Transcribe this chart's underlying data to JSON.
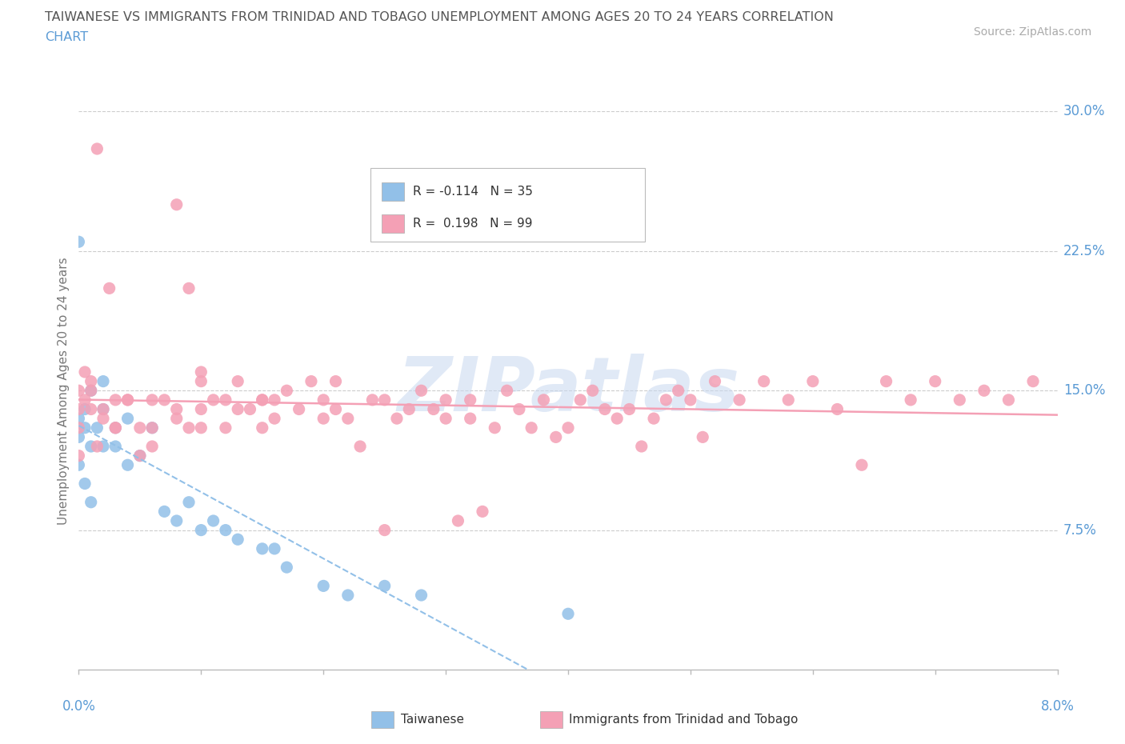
{
  "title_line1": "TAIWANESE VS IMMIGRANTS FROM TRINIDAD AND TOBAGO UNEMPLOYMENT AMONG AGES 20 TO 24 YEARS CORRELATION",
  "title_line2": "CHART",
  "source": "Source: ZipAtlas.com",
  "legend1_r": "-0.114",
  "legend1_n": "35",
  "legend2_r": "0.198",
  "legend2_n": "99",
  "color_taiwanese": "#92c0e8",
  "color_tt": "#f4a0b5",
  "color_title": "#555555",
  "color_source": "#aaaaaa",
  "color_axis_labels": "#5b9bd5",
  "xmin": 0.0,
  "xmax": 8.0,
  "ymin": 0.0,
  "ymax": 30.0,
  "ylabel_ticks": [
    "7.5%",
    "15.0%",
    "22.5%",
    "30.0%"
  ],
  "ylabel_vals": [
    7.5,
    15.0,
    22.5,
    30.0
  ],
  "watermark": "ZIPatlas",
  "tw_x": [
    0.0,
    0.0,
    0.0,
    0.0,
    0.05,
    0.05,
    0.1,
    0.1,
    0.1,
    0.15,
    0.2,
    0.2,
    0.2,
    0.3,
    0.3,
    0.4,
    0.4,
    0.5,
    0.6,
    0.7,
    0.8,
    0.9,
    1.0,
    1.1,
    1.2,
    1.3,
    1.5,
    1.6,
    1.7,
    2.0,
    2.2,
    2.5,
    2.8,
    4.0,
    0.05
  ],
  "tw_y": [
    23.0,
    13.5,
    12.5,
    11.0,
    14.0,
    13.0,
    12.0,
    9.0,
    15.0,
    13.0,
    12.0,
    15.5,
    14.0,
    12.0,
    13.0,
    11.0,
    13.5,
    11.5,
    13.0,
    8.5,
    8.0,
    9.0,
    7.5,
    8.0,
    7.5,
    7.0,
    6.5,
    6.5,
    5.5,
    4.5,
    4.0,
    4.5,
    4.0,
    3.0,
    10.0
  ],
  "tt_x": [
    0.0,
    0.0,
    0.0,
    0.0,
    0.05,
    0.05,
    0.1,
    0.1,
    0.15,
    0.2,
    0.25,
    0.3,
    0.3,
    0.4,
    0.5,
    0.5,
    0.6,
    0.6,
    0.7,
    0.8,
    0.8,
    0.9,
    0.9,
    1.0,
    1.0,
    1.0,
    1.1,
    1.2,
    1.2,
    1.3,
    1.3,
    1.4,
    1.5,
    1.5,
    1.6,
    1.6,
    1.7,
    1.8,
    1.9,
    2.0,
    2.0,
    2.1,
    2.1,
    2.2,
    2.3,
    2.4,
    2.5,
    2.5,
    2.6,
    2.7,
    2.8,
    2.9,
    3.0,
    3.0,
    3.1,
    3.2,
    3.2,
    3.3,
    3.4,
    3.5,
    3.6,
    3.7,
    3.8,
    3.9,
    4.0,
    4.1,
    4.2,
    4.3,
    4.4,
    4.5,
    4.6,
    4.7,
    4.8,
    4.9,
    5.0,
    5.1,
    5.2,
    5.4,
    5.6,
    5.8,
    6.0,
    6.2,
    6.4,
    6.6,
    6.8,
    7.0,
    7.2,
    7.4,
    7.6,
    7.8,
    0.1,
    0.15,
    0.2,
    0.3,
    0.4,
    0.6,
    0.8,
    1.0,
    1.5
  ],
  "tt_y": [
    15.0,
    14.0,
    13.0,
    11.5,
    16.0,
    14.5,
    15.5,
    14.0,
    28.0,
    13.5,
    20.5,
    14.5,
    13.0,
    14.5,
    13.0,
    11.5,
    14.5,
    13.0,
    14.5,
    25.0,
    14.0,
    20.5,
    13.0,
    15.5,
    14.0,
    13.0,
    14.5,
    14.5,
    13.0,
    15.5,
    14.0,
    14.0,
    14.5,
    13.0,
    14.5,
    13.5,
    15.0,
    14.0,
    15.5,
    13.5,
    14.5,
    15.5,
    14.0,
    13.5,
    12.0,
    14.5,
    7.5,
    14.5,
    13.5,
    14.0,
    15.0,
    14.0,
    13.5,
    14.5,
    8.0,
    13.5,
    14.5,
    8.5,
    13.0,
    15.0,
    14.0,
    13.0,
    14.5,
    12.5,
    13.0,
    14.5,
    15.0,
    14.0,
    13.5,
    14.0,
    12.0,
    13.5,
    14.5,
    15.0,
    14.5,
    12.5,
    15.5,
    14.5,
    15.5,
    14.5,
    15.5,
    14.0,
    11.0,
    15.5,
    14.5,
    15.5,
    14.5,
    15.0,
    14.5,
    15.5,
    15.0,
    12.0,
    14.0,
    13.0,
    14.5,
    12.0,
    13.5,
    16.0,
    14.5
  ]
}
